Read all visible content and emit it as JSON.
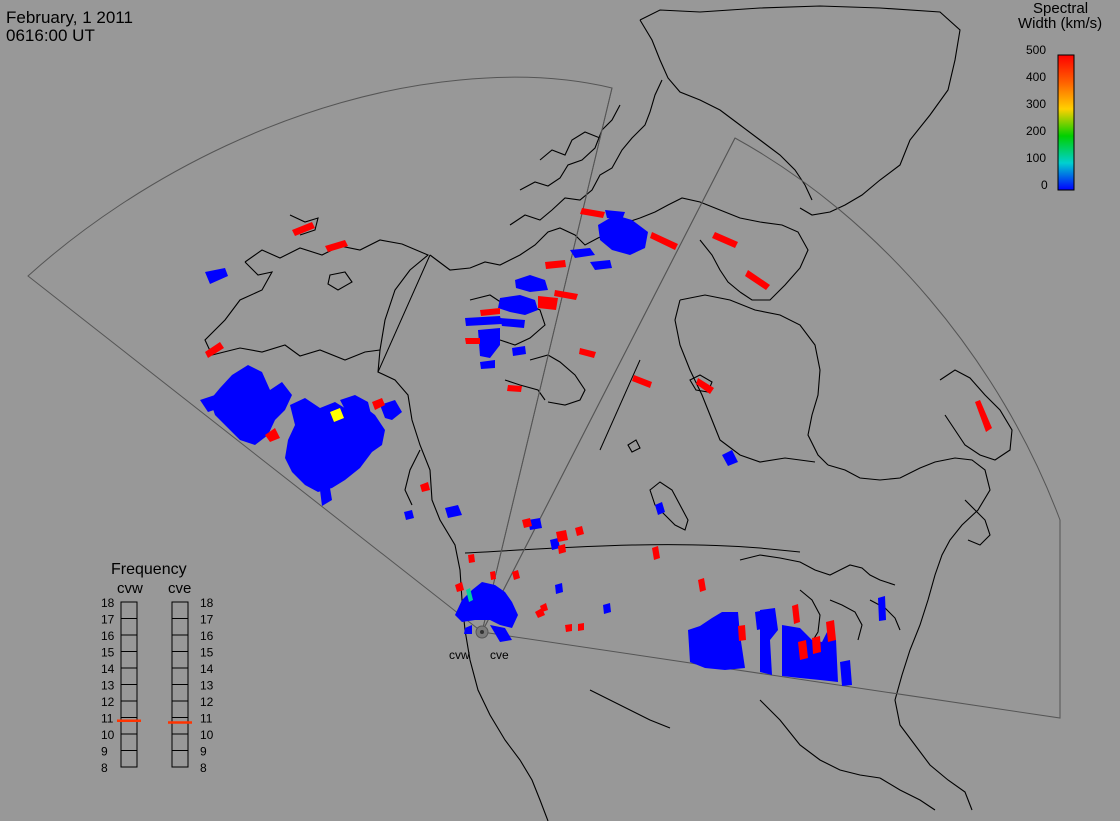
{
  "header": {
    "date": "February, 1 2011",
    "time": "0616:00 UT"
  },
  "colorbar": {
    "title_line1": "Spectral",
    "title_line2": "Width (km/s)",
    "ticks": [
      "500",
      "400",
      "300",
      "200",
      "100",
      "0"
    ],
    "colors": [
      "#ff0000",
      "#ff8000",
      "#ffd000",
      "#00d000",
      "#00d0c0",
      "#0000ff"
    ]
  },
  "frequency": {
    "title": "Frequency",
    "radar_left": "cvw",
    "radar_right": "cve",
    "ticks": [
      "18",
      "17",
      "16",
      "15",
      "14",
      "13",
      "12",
      "11",
      "10",
      "9",
      "8"
    ],
    "cvw_value": 10.8,
    "cve_value": 10.7
  },
  "map": {
    "radar_labels": [
      "cvw",
      "cve"
    ],
    "colors": {
      "background": "#989898",
      "coast": "#000000",
      "fov": "#555555",
      "low": "#0000ff",
      "high": "#ff0000",
      "mid": "#ffff00",
      "teal": "#00d0a0"
    }
  }
}
